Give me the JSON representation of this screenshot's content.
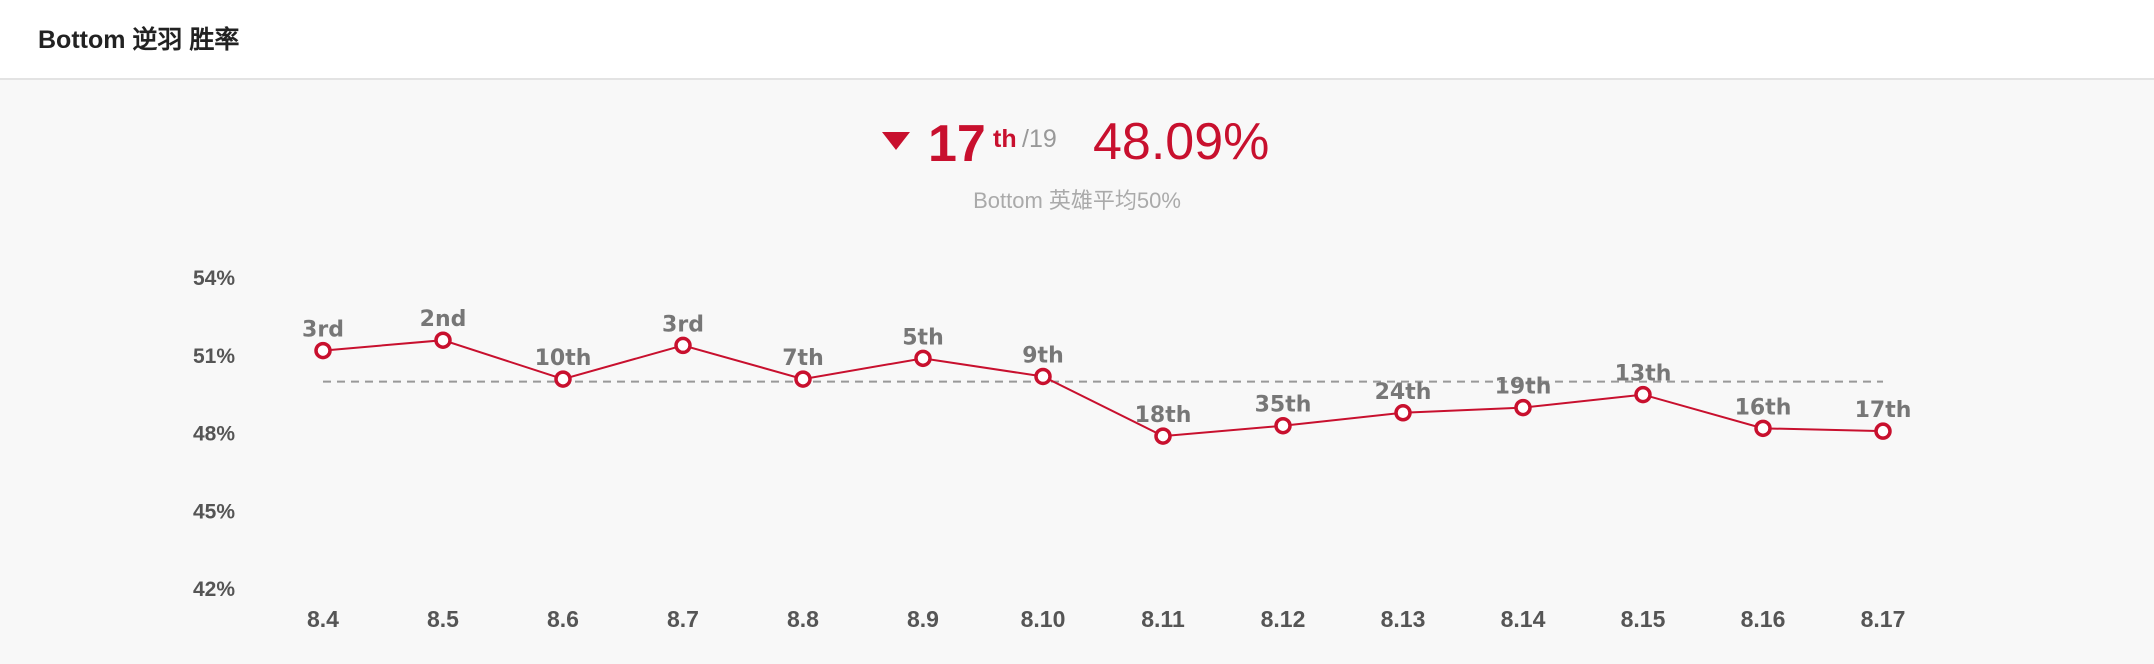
{
  "header": {
    "title": "Bottom 逆羽 胜率"
  },
  "summary": {
    "trend": "down",
    "trend_icon": "triangle-down-icon",
    "rank": "17",
    "rank_suffix": "th",
    "rank_total": "/19",
    "winrate": "48.09%",
    "average_note": "Bottom 英雄平均50%"
  },
  "colors": {
    "accent": "#c8102e",
    "background": "#f8f8f8",
    "average_line": "#999999"
  },
  "chart_data": {
    "type": "line",
    "x": [
      "8.4",
      "8.5",
      "8.6",
      "8.7",
      "8.8",
      "8.9",
      "8.10",
      "8.11",
      "8.12",
      "8.13",
      "8.14",
      "8.15",
      "8.16",
      "8.17"
    ],
    "series": [
      {
        "values": [
          51.2,
          51.6,
          50.1,
          51.4,
          50.1,
          50.9,
          50.2,
          47.9,
          48.3,
          48.8,
          49.0,
          49.5,
          48.2,
          48.09
        ]
      }
    ],
    "rank_labels": [
      "3rd",
      "2nd",
      "10th",
      "3rd",
      "7th",
      "5th",
      "9th",
      "18th",
      "35th",
      "24th",
      "19th",
      "13th",
      "16th",
      "17th"
    ],
    "average_line": 50,
    "yticks": [
      "54%",
      "51%",
      "48%",
      "45%",
      "42%"
    ],
    "ytick_values": [
      54,
      51,
      48,
      45,
      42
    ],
    "ylim": [
      42,
      54
    ],
    "grid": false,
    "legend": "none"
  }
}
